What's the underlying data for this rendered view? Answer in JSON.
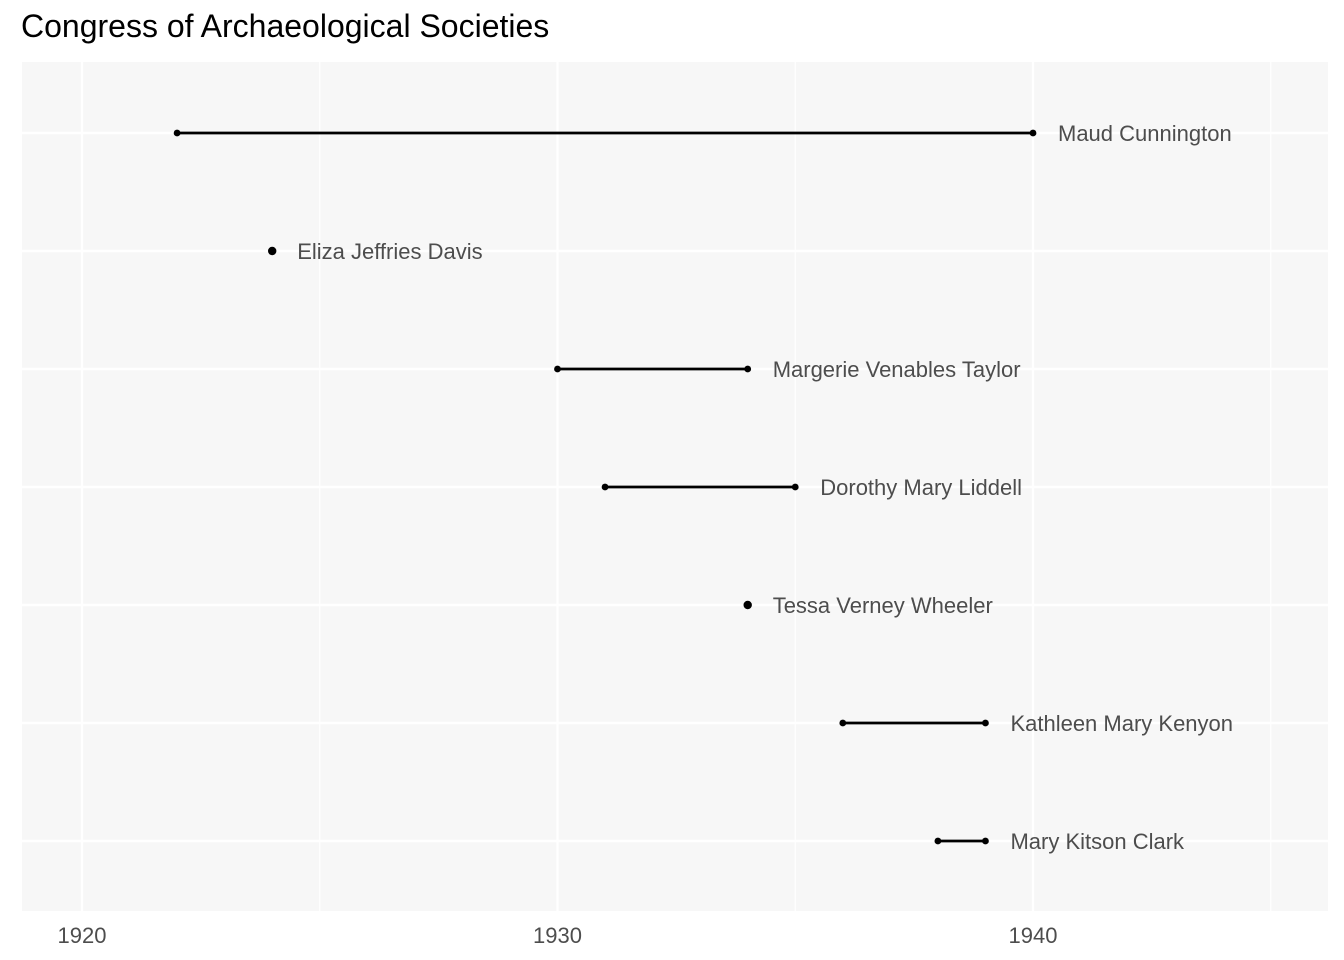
{
  "chart_data": {
    "type": "dumbbell",
    "title": "Congress of Archaeological Societies",
    "xlabel": "",
    "ylabel": "",
    "xlim": [
      1919,
      1946
    ],
    "x_ticks": [
      1920,
      1930,
      1940
    ],
    "x_tick_labels": [
      "1920",
      "1930",
      "1940"
    ],
    "grid": true,
    "colors": {
      "panel": "#f7f7f7",
      "grid": "#ffffff",
      "segment": "#000000",
      "label": "#4d4d4d"
    },
    "series": [
      {
        "name": "Maud Cunnington",
        "start": 1922,
        "end": 1940
      },
      {
        "name": "Eliza Jeffries Davis",
        "start": 1924,
        "end": 1924
      },
      {
        "name": "Margerie Venables Taylor",
        "start": 1930,
        "end": 1934
      },
      {
        "name": "Dorothy Mary Liddell",
        "start": 1931,
        "end": 1935
      },
      {
        "name": "Tessa Verney Wheeler",
        "start": 1934,
        "end": 1934
      },
      {
        "name": "Kathleen Mary Kenyon",
        "start": 1936,
        "end": 1939
      },
      {
        "name": "Mary Kitson Clark",
        "start": 1938,
        "end": 1939
      }
    ]
  }
}
